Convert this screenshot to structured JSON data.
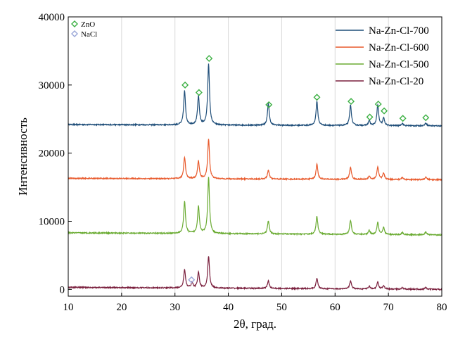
{
  "chart_data": {
    "type": "line",
    "xlabel": "2θ, град.",
    "ylabel": "Интенсивность",
    "xlim": [
      10,
      80
    ],
    "ylim": [
      -1000,
      40000
    ],
    "xticks": [
      10,
      20,
      30,
      40,
      50,
      60,
      70,
      80
    ],
    "yticks": [
      0,
      10000,
      20000,
      30000,
      40000
    ],
    "grid": "vertical",
    "legend_position": "top-right",
    "peak_width": 0.2,
    "series": [
      {
        "name": "Na-Zn-Cl-700",
        "color": "#1f4e79",
        "baseline_start": 24200,
        "baseline_end": 24000,
        "peaks": [
          [
            31.8,
            5000
          ],
          [
            34.4,
            4200
          ],
          [
            36.3,
            9000
          ],
          [
            47.5,
            3200
          ],
          [
            56.6,
            3500
          ],
          [
            62.9,
            3000
          ],
          [
            66.4,
            700
          ],
          [
            68.0,
            3000
          ],
          [
            69.1,
            1100
          ],
          [
            72.6,
            350
          ],
          [
            77.0,
            400
          ]
        ]
      },
      {
        "name": "Na-Zn-Cl-600",
        "color": "#e8592b",
        "baseline_start": 16300,
        "baseline_end": 16100,
        "peaks": [
          [
            31.8,
            3200
          ],
          [
            34.4,
            2600
          ],
          [
            36.3,
            5900
          ],
          [
            47.5,
            1300
          ],
          [
            56.6,
            2200
          ],
          [
            62.9,
            1800
          ],
          [
            66.4,
            500
          ],
          [
            68.0,
            1800
          ],
          [
            69.1,
            900
          ],
          [
            72.6,
            300
          ],
          [
            77.0,
            350
          ]
        ]
      },
      {
        "name": "Na-Zn-Cl-500",
        "color": "#6aab32",
        "baseline_start": 8300,
        "baseline_end": 8000,
        "peaks": [
          [
            31.8,
            4700
          ],
          [
            34.4,
            4000
          ],
          [
            36.3,
            8200
          ],
          [
            47.5,
            1900
          ],
          [
            56.6,
            2600
          ],
          [
            62.9,
            2100
          ],
          [
            66.4,
            600
          ],
          [
            68.0,
            1800
          ],
          [
            69.1,
            1000
          ],
          [
            72.6,
            300
          ],
          [
            77.0,
            400
          ]
        ]
      },
      {
        "name": "Na-Zn-Cl-20",
        "color": "#7a1f3d",
        "baseline_start": 300,
        "baseline_end": 0,
        "peaks": [
          [
            31.8,
            2700
          ],
          [
            33.2,
            800
          ],
          [
            34.4,
            2300
          ],
          [
            36.3,
            4700
          ],
          [
            47.5,
            1100
          ],
          [
            56.6,
            1500
          ],
          [
            62.9,
            1200
          ],
          [
            66.4,
            400
          ],
          [
            68.0,
            1000
          ],
          [
            69.1,
            500
          ],
          [
            72.6,
            200
          ],
          [
            77.0,
            250
          ]
        ]
      }
    ],
    "markers": [
      {
        "name": "ZnO",
        "color": "#3cb043",
        "points": [
          [
            31.9,
            30000
          ],
          [
            34.5,
            28900
          ],
          [
            36.4,
            33900
          ],
          [
            47.6,
            27100
          ],
          [
            56.6,
            28200
          ],
          [
            63.0,
            27600
          ],
          [
            66.5,
            25300
          ],
          [
            68.1,
            27200
          ],
          [
            69.2,
            26200
          ],
          [
            72.7,
            25100
          ],
          [
            77.0,
            25200
          ]
        ]
      },
      {
        "name": "NaCl",
        "color": "#9aa7d8",
        "points": [
          [
            33.1,
            1400
          ]
        ]
      }
    ]
  }
}
